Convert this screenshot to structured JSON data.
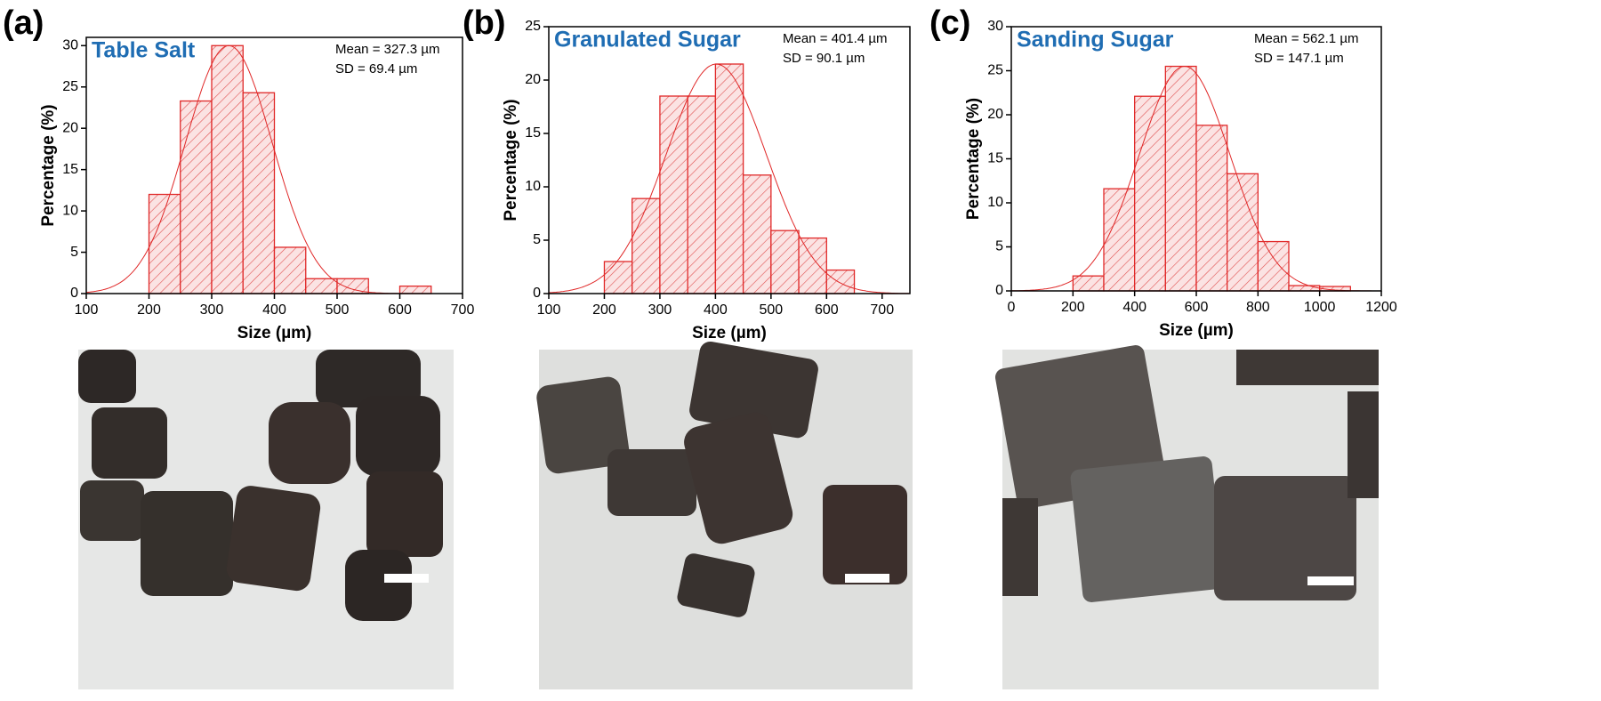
{
  "chart_data": [
    {
      "type": "histogram",
      "panel_label": "(a)",
      "title": "Table Salt",
      "annotations": [
        "Mean = 327.3 µm",
        "SD = 69.4 µm"
      ],
      "x_label": "Size (µm)",
      "y_label": "Percentage (%)",
      "color": "#e02828",
      "bins": [
        200,
        250,
        300,
        350,
        400,
        450,
        500,
        550,
        600,
        650
      ],
      "values": [
        12,
        23.3,
        30,
        24.3,
        5.6,
        1.8,
        1.8,
        0,
        0.9
      ],
      "xlim": [
        100,
        700
      ],
      "xticks": [
        100,
        200,
        300,
        400,
        500,
        600,
        700
      ],
      "ylim": [
        0,
        31
      ],
      "yticks": [
        0,
        5,
        10,
        15,
        20,
        25,
        30
      ],
      "fit": {
        "mean": 327.3,
        "sd": 69.4,
        "peak": 30
      }
    },
    {
      "type": "histogram",
      "panel_label": "(b)",
      "title": "Granulated Sugar",
      "annotations": [
        "Mean = 401.4 µm",
        "SD = 90.1 µm"
      ],
      "x_label": "Size (µm)",
      "y_label": "Percentage (%)",
      "color": "#e02828",
      "bins": [
        200,
        250,
        300,
        350,
        400,
        450,
        500,
        550,
        600,
        650
      ],
      "values": [
        3,
        8.9,
        18.5,
        18.5,
        21.5,
        11.1,
        5.9,
        5.2,
        2.2
      ],
      "xlim": [
        100,
        750
      ],
      "xticks": [
        100,
        200,
        300,
        400,
        500,
        600,
        700
      ],
      "ylim": [
        0,
        25
      ],
      "yticks": [
        0,
        5,
        10,
        15,
        20,
        25
      ],
      "fit": {
        "mean": 401.4,
        "sd": 90.1,
        "peak": 21.5
      }
    },
    {
      "type": "histogram",
      "panel_label": "(c)",
      "title": "Sanding Sugar",
      "annotations": [
        "Mean = 562.1 µm",
        "SD = 147.1 µm"
      ],
      "x_label": "Size (µm)",
      "y_label": "Percentage (%)",
      "color": "#e02828",
      "bins": [
        200,
        300,
        400,
        500,
        600,
        700,
        800,
        900,
        1000,
        1100
      ],
      "values": [
        1.7,
        11.6,
        22.1,
        25.5,
        18.8,
        13.3,
        5.6,
        0.6,
        0.5
      ],
      "xlim": [
        0,
        1200
      ],
      "xticks": [
        0,
        200,
        400,
        600,
        800,
        1000,
        1200
      ],
      "ylim": [
        0,
        30
      ],
      "yticks": [
        0,
        5,
        10,
        15,
        20,
        25,
        30
      ],
      "fit": {
        "mean": 562.1,
        "sd": 147.1,
        "peak": 25.5
      }
    }
  ]
}
